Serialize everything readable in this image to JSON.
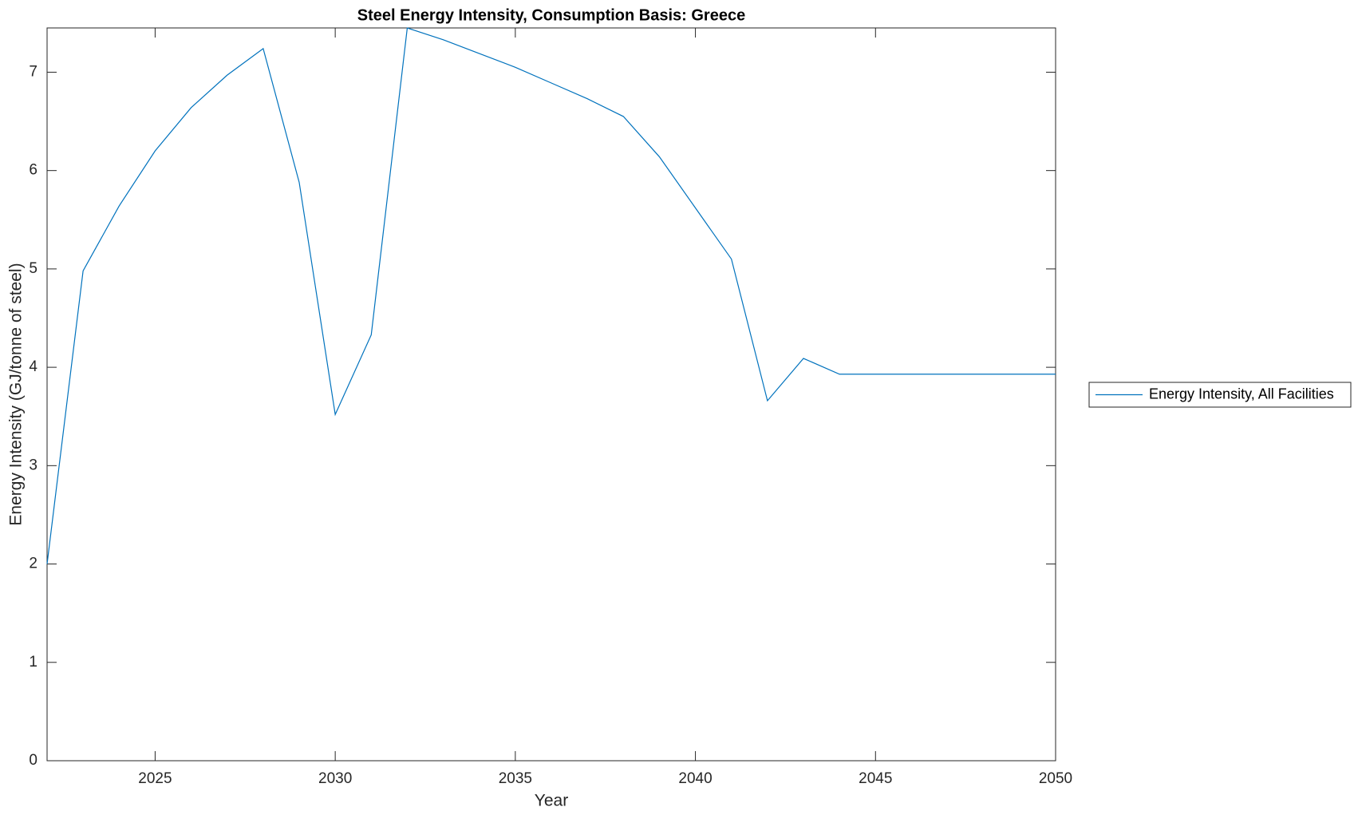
{
  "chart_data": {
    "type": "line",
    "title": "Steel Energy Intensity, Consumption Basis: Greece",
    "x_label": "Year",
    "y_label": "Energy Intensity (GJ/tonne of steel)",
    "x": [
      2022,
      2023,
      2024,
      2025,
      2026,
      2027,
      2028,
      2029,
      2030,
      2031,
      2032,
      2033,
      2034,
      2035,
      2036,
      2037,
      2038,
      2039,
      2040,
      2041,
      2042,
      2043,
      2044,
      2045,
      2046,
      2047,
      2048,
      2049,
      2050
    ],
    "series": [
      {
        "name": "Energy Intensity, All Facilities",
        "color": "#0072bd",
        "values": [
          2.0,
          4.98,
          5.64,
          6.2,
          6.64,
          6.97,
          7.24,
          5.88,
          3.52,
          4.33,
          7.45,
          7.33,
          7.19,
          7.05,
          6.89,
          6.73,
          6.55,
          6.14,
          5.62,
          5.1,
          3.66,
          4.09,
          3.93,
          3.93,
          3.93,
          3.93,
          3.93,
          3.93,
          3.93
        ]
      }
    ],
    "xlim": [
      2022,
      2050
    ],
    "xticks": [
      2025,
      2030,
      2035,
      2040,
      2045,
      2050
    ],
    "ylim": [
      0,
      7.45
    ],
    "yticks": [
      0,
      1,
      2,
      3,
      4,
      5,
      6,
      7
    ],
    "grid": false,
    "legend": "outside-right"
  }
}
